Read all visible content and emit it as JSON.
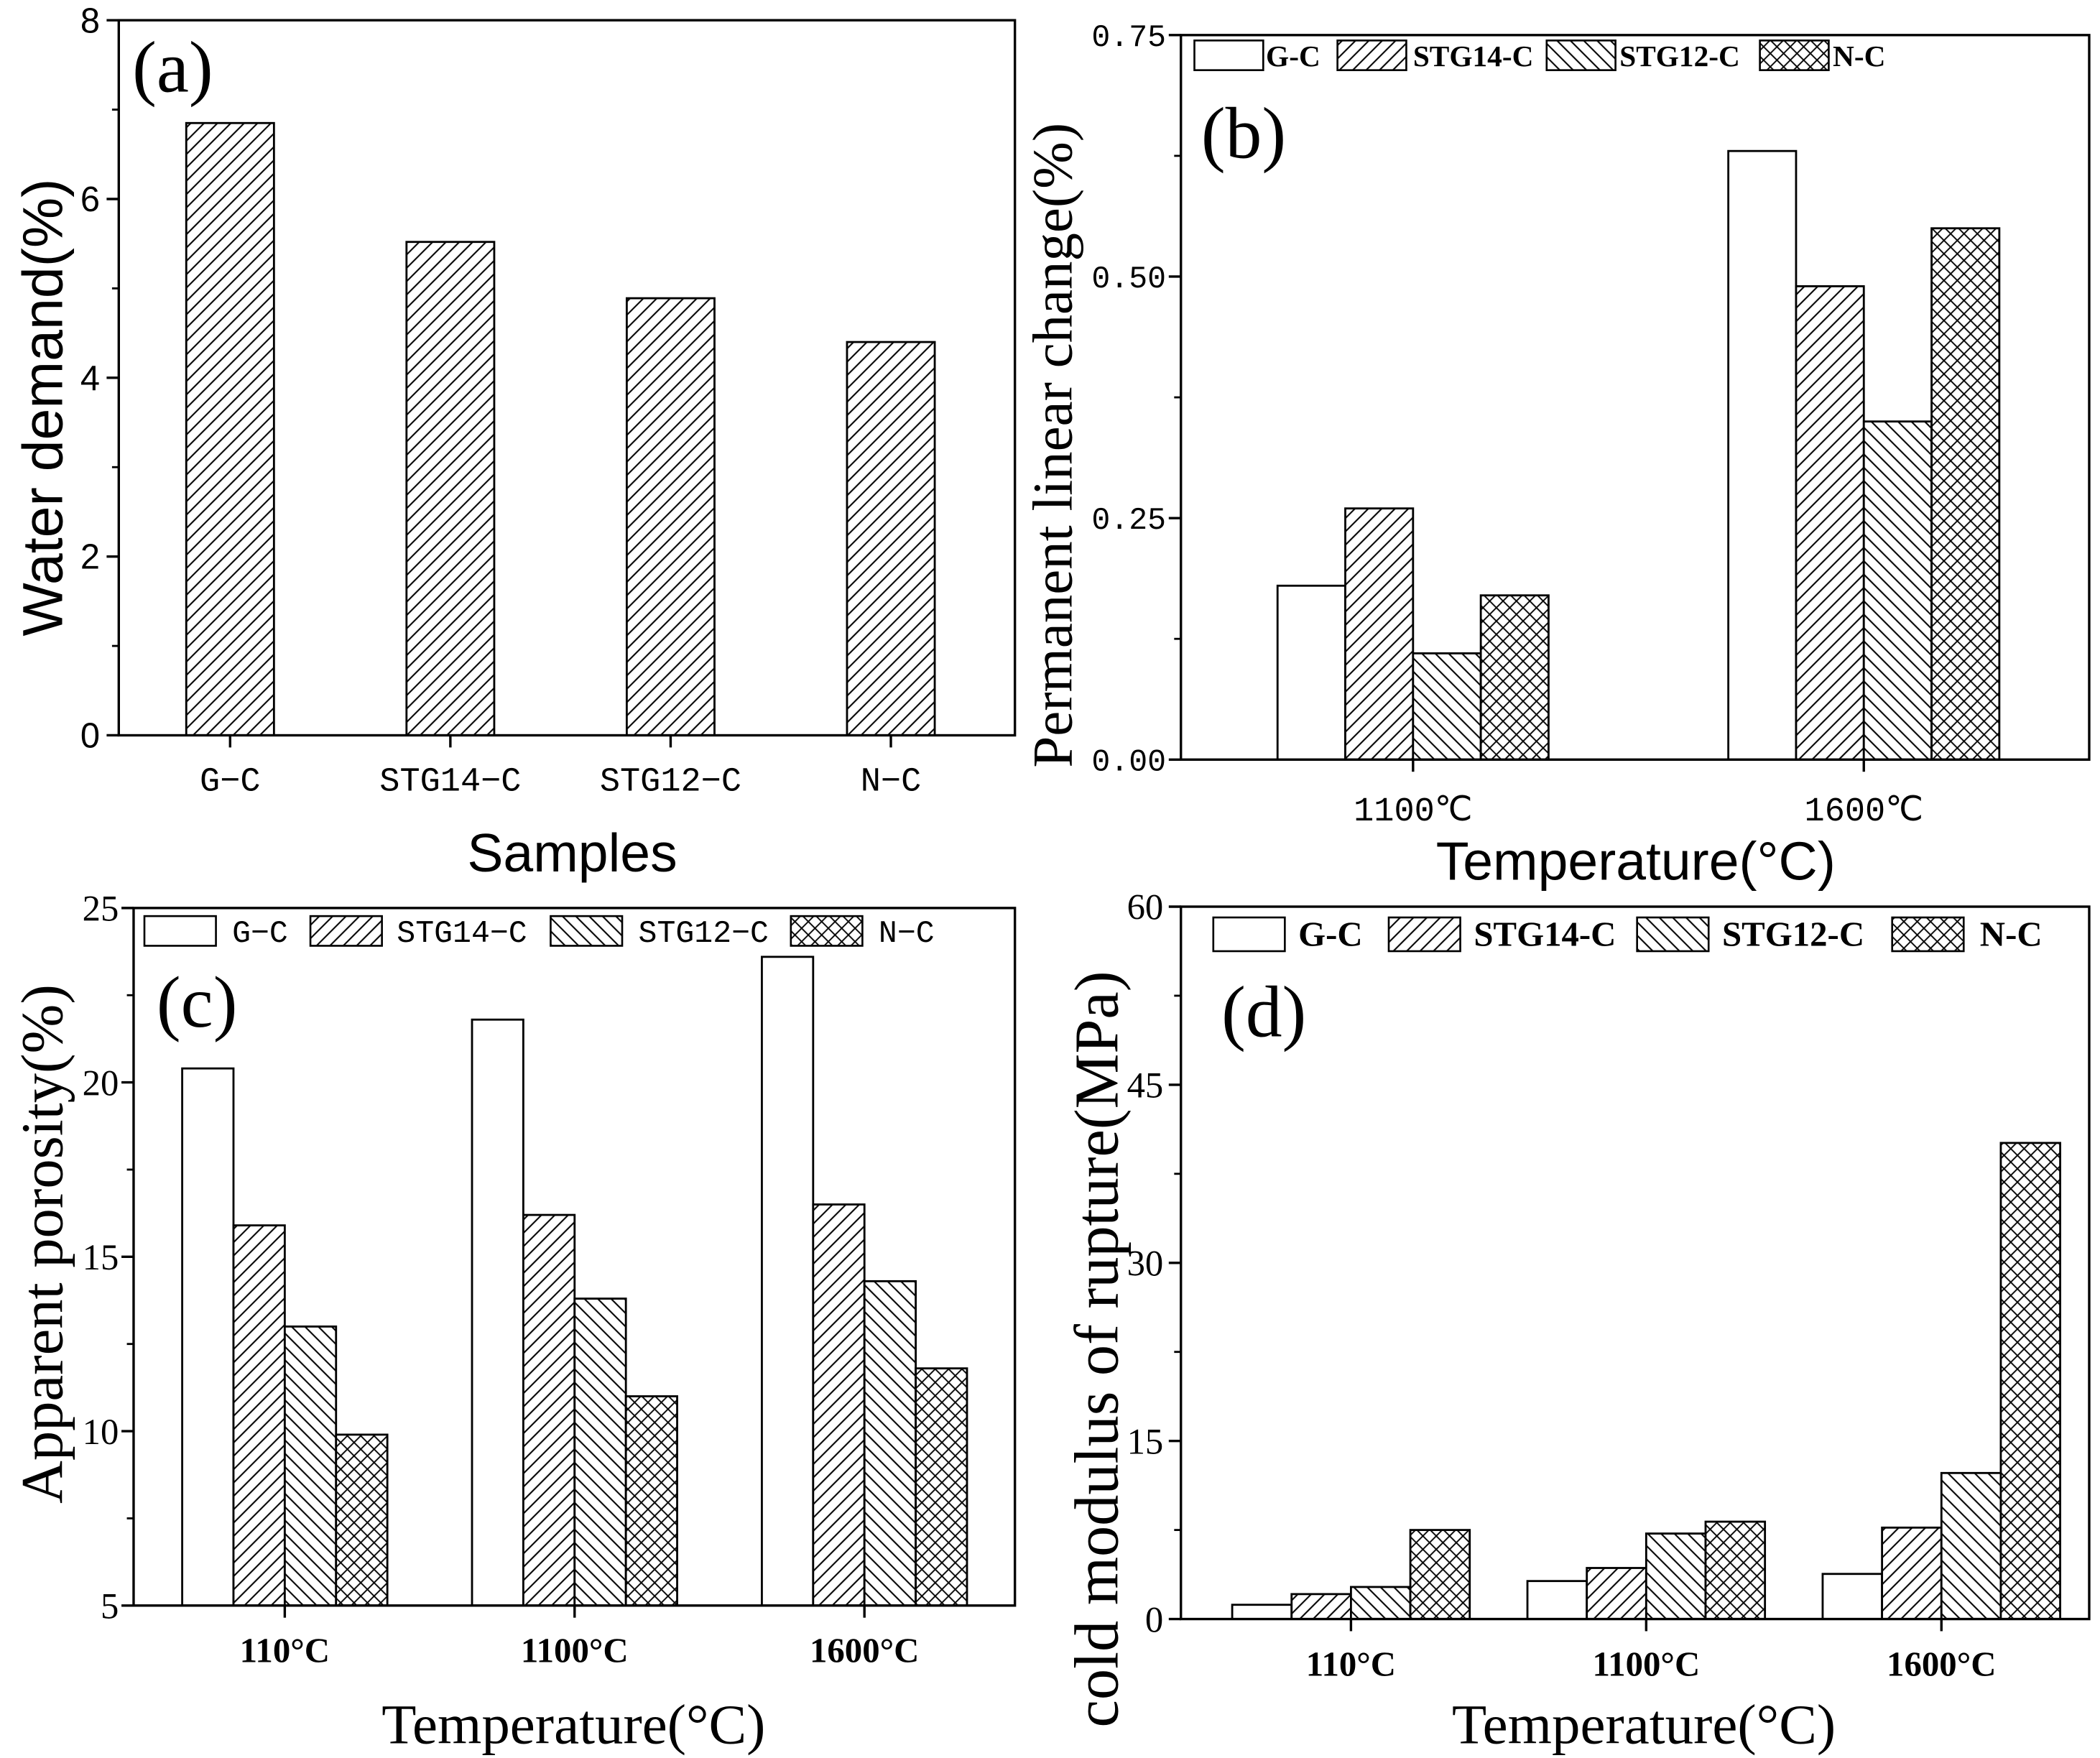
{
  "chart_data": [
    {
      "label": "(a)",
      "type": "bar",
      "categories": [
        "G−C",
        "STG14−C",
        "STG12−C",
        "N−C"
      ],
      "values": [
        6.85,
        5.52,
        4.89,
        4.4
      ],
      "fill_pattern": "hatch-forward",
      "xlabel": "Samples",
      "ylabel": "Water demand(%)",
      "ylim": [
        0,
        8
      ],
      "yticks": [
        "0",
        "2",
        "4",
        "6",
        "8"
      ],
      "grid": false
    },
    {
      "label": "(b)",
      "type": "bar",
      "categories": [
        "1100℃",
        "1600℃"
      ],
      "series": [
        {
          "name": "G-C",
          "values": [
            0.18,
            0.63
          ],
          "fill_pattern": "none"
        },
        {
          "name": "STG14-C",
          "values": [
            0.26,
            0.49
          ],
          "fill_pattern": "hatch-forward"
        },
        {
          "name": "STG12-C",
          "values": [
            0.11,
            0.35
          ],
          "fill_pattern": "hatch-backward"
        },
        {
          "name": "N-C",
          "values": [
            0.17,
            0.55
          ],
          "fill_pattern": "crosshatch"
        }
      ],
      "xlabel": "Temperature(°C)",
      "ylabel": "Permanent linear change(%)",
      "ylim": [
        0,
        0.75
      ],
      "yticks": [
        "0.00",
        "0.25",
        "0.50",
        "0.75"
      ],
      "legend": "top",
      "grid": false
    },
    {
      "label": "(c)",
      "type": "bar",
      "categories": [
        "110°C",
        "1100°C",
        "1600°C"
      ],
      "series": [
        {
          "name": "G−C",
          "values": [
            20.4,
            21.8,
            23.6
          ],
          "fill_pattern": "none"
        },
        {
          "name": "STG14−C",
          "values": [
            15.9,
            16.2,
            16.5
          ],
          "fill_pattern": "hatch-forward"
        },
        {
          "name": "STG12−C",
          "values": [
            13.0,
            13.8,
            14.3
          ],
          "fill_pattern": "hatch-backward"
        },
        {
          "name": "N−C",
          "values": [
            9.9,
            11.0,
            11.8
          ],
          "fill_pattern": "crosshatch"
        }
      ],
      "xlabel": "Temperature(°C)",
      "ylabel": "Apparent porosity(%)",
      "ylim": [
        5,
        25
      ],
      "yticks": [
        "5",
        "10",
        "15",
        "20",
        "25"
      ],
      "legend": "top",
      "grid": false
    },
    {
      "label": "(d)",
      "type": "bar",
      "categories": [
        "110°C",
        "1100°C",
        "1600°C"
      ],
      "series": [
        {
          "name": "G-C",
          "values": [
            1.2,
            3.2,
            3.8
          ],
          "fill_pattern": "none"
        },
        {
          "name": "STG14-C",
          "values": [
            2.1,
            4.3,
            7.7
          ],
          "fill_pattern": "hatch-forward"
        },
        {
          "name": "STG12-C",
          "values": [
            2.7,
            7.2,
            12.3
          ],
          "fill_pattern": "hatch-backward"
        },
        {
          "name": "N-C",
          "values": [
            7.5,
            8.2,
            40.1
          ],
          "fill_pattern": "crosshatch"
        }
      ],
      "xlabel": "Temperature(°C)",
      "ylabel": "cold modulus of rupture(MPa)",
      "ylim": [
        0,
        60
      ],
      "yticks": [
        "0",
        "15",
        "30",
        "45",
        "60"
      ],
      "legend": "top",
      "grid": false
    }
  ]
}
